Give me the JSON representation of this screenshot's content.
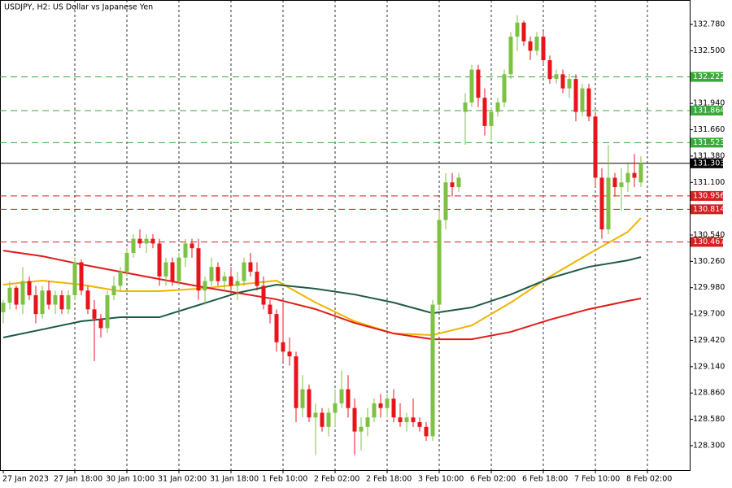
{
  "chart_data": {
    "type": "candlestick",
    "title": "USDJPY, H2:  US Dollar vs Japanese Yen",
    "xlim": [
      -0.5,
      105.5
    ],
    "xticks": [
      {
        "value": 0,
        "label": "27 Jan 2023"
      },
      {
        "value": 11,
        "label": "27 Jan 18:00"
      },
      {
        "value": 19,
        "label": "30 Jan 10:00"
      },
      {
        "value": 27,
        "label": "31 Jan 02:00"
      },
      {
        "value": 35,
        "label": "31 Jan 18:00"
      },
      {
        "value": 43,
        "label": "1 Feb 10:00"
      },
      {
        "value": 51,
        "label": "2 Feb 02:00"
      },
      {
        "value": 59,
        "label": "2 Feb 18:00"
      },
      {
        "value": 67,
        "label": "3 Feb 10:00"
      },
      {
        "value": 75,
        "label": "6 Feb 02:00"
      },
      {
        "value": 83,
        "label": "6 Feb 18:00"
      },
      {
        "value": 91,
        "label": "7 Feb 10:00"
      },
      {
        "value": 99,
        "label": "8 Feb 02:00"
      }
    ],
    "ylim": [
      128.04,
      133.04
    ],
    "yticks": [
      {
        "value": 132.78,
        "label": "132.780"
      },
      {
        "value": 132.5,
        "label": "132.500"
      },
      {
        "value": 131.94,
        "label": "131.940"
      },
      {
        "value": 131.66,
        "label": "131.660"
      },
      {
        "value": 131.38,
        "label": "131.380"
      },
      {
        "value": 131.1,
        "label": "131.100"
      },
      {
        "value": 130.54,
        "label": "130.540"
      },
      {
        "value": 130.26,
        "label": "130.260"
      },
      {
        "value": 129.98,
        "label": "129.980"
      },
      {
        "value": 129.7,
        "label": "129.700"
      },
      {
        "value": 129.42,
        "label": "129.420"
      },
      {
        "value": 129.14,
        "label": "129.140"
      },
      {
        "value": 128.86,
        "label": "128.860"
      },
      {
        "value": 128.58,
        "label": "128.580"
      },
      {
        "value": 128.3,
        "label": "128.300"
      }
    ],
    "up_color": "#7dc242",
    "down_color": "#e8141b",
    "candles": {
      "open": [
        129.72,
        129.82,
        129.98,
        129.8,
        130.05,
        129.9,
        129.7,
        129.95,
        129.8,
        129.9,
        129.75,
        129.9,
        130.25,
        129.95,
        129.75,
        129.65,
        129.55,
        129.9,
        130.0,
        130.15,
        130.35,
        130.5,
        130.45,
        130.5,
        130.45,
        130.1,
        130.25,
        130.05,
        130.3,
        130.45,
        130.4,
        129.95,
        130.05,
        130.2,
        130.05,
        130.1,
        130.0,
        130.05,
        130.25,
        130.15,
        130.0,
        129.8,
        129.7,
        129.4,
        129.3,
        129.25,
        128.7,
        128.9,
        128.6,
        128.65,
        128.5,
        128.65,
        128.75,
        128.9,
        128.7,
        128.45,
        128.5,
        128.6,
        128.75,
        128.7,
        128.8,
        128.6,
        128.55,
        128.6,
        128.55,
        128.5,
        128.4,
        129.8,
        130.7,
        131.1,
        131.05,
        131.85,
        131.95,
        132.3,
        132.0,
        131.7,
        131.85,
        131.95,
        132.25,
        132.65,
        132.8,
        132.6,
        132.5,
        132.65,
        132.4,
        132.2,
        132.25,
        132.1,
        132.2,
        131.85,
        132.1,
        131.8,
        131.15,
        130.6,
        131.15,
        131.05,
        131.1,
        131.2,
        131.1
      ],
      "high": [
        129.85,
        130.05,
        130.0,
        130.2,
        130.1,
        130.0,
        130.0,
        130.05,
        129.95,
        129.95,
        129.95,
        130.3,
        130.28,
        130.0,
        129.85,
        129.7,
        129.95,
        130.1,
        130.2,
        130.4,
        130.55,
        130.6,
        130.55,
        130.55,
        130.5,
        130.3,
        130.3,
        130.35,
        130.5,
        130.5,
        130.5,
        130.1,
        130.3,
        130.25,
        130.15,
        130.2,
        130.15,
        130.3,
        130.35,
        130.25,
        130.1,
        129.85,
        129.75,
        129.8,
        129.45,
        129.3,
        129.05,
        128.95,
        128.75,
        128.7,
        128.7,
        128.9,
        129.1,
        129.05,
        128.8,
        128.6,
        128.7,
        128.8,
        128.85,
        128.85,
        128.9,
        128.75,
        128.65,
        128.8,
        128.6,
        128.55,
        129.85,
        130.8,
        131.2,
        131.2,
        131.2,
        132.05,
        132.35,
        132.35,
        132.1,
        131.9,
        132.0,
        132.3,
        132.7,
        132.88,
        132.82,
        132.65,
        132.7,
        132.7,
        132.45,
        132.3,
        132.3,
        132.25,
        132.25,
        132.15,
        132.15,
        131.85,
        131.25,
        131.5,
        131.2,
        131.25,
        131.3,
        131.4,
        131.38
      ],
      "low": [
        129.6,
        129.75,
        129.75,
        129.7,
        129.85,
        129.6,
        129.65,
        129.75,
        129.7,
        129.7,
        129.7,
        129.85,
        129.9,
        129.7,
        129.2,
        129.45,
        129.5,
        129.85,
        129.95,
        130.1,
        130.3,
        130.4,
        130.35,
        130.4,
        130.0,
        130.0,
        130.0,
        130.0,
        130.2,
        130.3,
        129.85,
        129.8,
        130.0,
        130.0,
        129.95,
        129.95,
        129.85,
        130.0,
        130.1,
        129.95,
        129.75,
        129.6,
        129.3,
        129.2,
        129.15,
        128.55,
        128.6,
        128.55,
        128.2,
        128.45,
        128.4,
        128.5,
        128.7,
        128.6,
        128.2,
        128.25,
        128.4,
        128.55,
        128.6,
        128.6,
        128.55,
        128.5,
        128.45,
        128.5,
        128.45,
        128.35,
        128.35,
        129.75,
        130.6,
        130.95,
        131.0,
        131.5,
        131.9,
        131.9,
        131.6,
        131.55,
        131.8,
        131.9,
        132.2,
        132.5,
        132.55,
        132.4,
        132.45,
        132.35,
        132.15,
        132.15,
        132.05,
        132.0,
        131.75,
        131.8,
        131.75,
        131.05,
        130.5,
        130.55,
        130.95,
        130.8,
        131.0,
        131.05,
        131.05
      ],
      "close": [
        129.82,
        129.98,
        129.8,
        130.05,
        129.9,
        129.7,
        129.95,
        129.8,
        129.9,
        129.75,
        129.9,
        130.25,
        129.95,
        129.75,
        129.65,
        129.55,
        129.9,
        130.0,
        130.15,
        130.35,
        130.5,
        130.45,
        130.5,
        130.45,
        130.1,
        130.25,
        130.05,
        130.3,
        130.45,
        130.4,
        129.95,
        130.05,
        130.2,
        130.05,
        130.1,
        130.0,
        130.05,
        130.25,
        130.15,
        130.0,
        129.8,
        129.7,
        129.4,
        129.3,
        129.25,
        128.7,
        128.9,
        128.6,
        128.65,
        128.5,
        128.65,
        128.75,
        128.9,
        128.7,
        128.45,
        128.5,
        128.6,
        128.75,
        128.7,
        128.8,
        128.6,
        128.55,
        128.6,
        128.55,
        128.5,
        128.4,
        129.8,
        130.7,
        131.1,
        131.05,
        131.15,
        131.95,
        132.3,
        132.0,
        131.7,
        131.85,
        131.95,
        132.25,
        132.65,
        132.8,
        132.6,
        132.5,
        132.65,
        132.4,
        132.2,
        132.25,
        132.1,
        132.2,
        131.85,
        132.1,
        131.8,
        131.15,
        130.6,
        131.15,
        131.05,
        131.1,
        131.2,
        131.15,
        131.303
      ]
    },
    "moving_averages": [
      {
        "color": "#f0b400",
        "x": [
          0,
          6,
          12,
          18,
          24,
          30,
          36,
          42,
          48,
          54,
          60,
          66,
          72,
          78,
          84,
          90,
          96,
          98
        ],
        "values": [
          130.012,
          130.055,
          130.012,
          129.943,
          129.943,
          129.969,
          130.012,
          130.055,
          129.822,
          129.623,
          129.493,
          129.476,
          129.579,
          129.822,
          130.098,
          130.341,
          130.574,
          130.721
        ]
      },
      {
        "color": "#1e5a44",
        "x": [
          0,
          6,
          12,
          18,
          24,
          30,
          36,
          42,
          48,
          54,
          60,
          66,
          72,
          78,
          84,
          90,
          96,
          98
        ],
        "values": [
          129.45,
          129.536,
          129.623,
          129.666,
          129.666,
          129.795,
          129.925,
          130.012,
          129.969,
          129.908,
          129.822,
          129.709,
          129.77,
          129.908,
          130.081,
          130.202,
          130.271,
          130.306
        ]
      },
      {
        "color": "#e01b1b",
        "x": [
          0,
          6,
          12,
          18,
          24,
          30,
          36,
          42,
          48,
          54,
          60,
          66,
          72,
          78,
          84,
          90,
          96,
          98
        ],
        "values": [
          130.375,
          130.315,
          130.228,
          130.15,
          130.072,
          129.995,
          129.925,
          129.856,
          129.752,
          129.605,
          129.493,
          129.432,
          129.432,
          129.51,
          129.64,
          129.752,
          129.839,
          129.865
        ]
      }
    ],
    "levels": [
      {
        "value": 132.222,
        "label": "132.222",
        "color": "#3aa83a"
      },
      {
        "value": 131.864,
        "label": "131.864",
        "color": "#3aa83a"
      },
      {
        "value": 131.523,
        "label": "131.523",
        "color": "#3aa83a"
      },
      {
        "value": 130.956,
        "label": "130.956",
        "color": "#d42020"
      },
      {
        "value": 130.814,
        "label": "130.814",
        "color": "#d42020"
      },
      {
        "value": 130.467,
        "label": "130.467",
        "color": "#d42020"
      }
    ],
    "current_price": {
      "value": 131.303,
      "label": "131.303",
      "color": "#000000"
    }
  }
}
